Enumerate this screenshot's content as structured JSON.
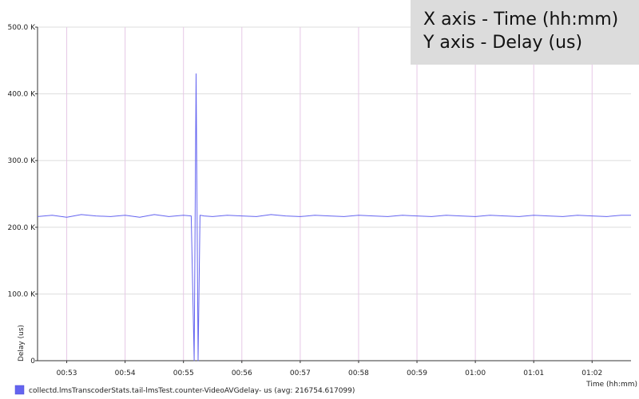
{
  "overlay": {
    "line1": "X axis - Time (hh:mm)",
    "line2": "Y axis - Delay (us)"
  },
  "chart_data": {
    "type": "line",
    "title": "",
    "xlabel": "Time (hh:mm)",
    "ylabel": "Delay (us)",
    "x_ticks": [
      "00:53",
      "00:54",
      "00:55",
      "00:56",
      "00:57",
      "00:58",
      "00:59",
      "01:00",
      "01:01",
      "01:02"
    ],
    "x_range": [
      "00:52:30",
      "01:02:40"
    ],
    "y_ticks": [
      "0",
      "100.0 K",
      "200.0 K",
      "300.0 K",
      "400.0 K",
      "500.0 K"
    ],
    "ylim": [
      0,
      500000
    ],
    "grid": true,
    "legend_position": "bottom-left",
    "colors": {
      "series": "#6464f0",
      "vgrid": "#e6c8e6",
      "hgrid": "#dddddd",
      "axis": "#333333"
    },
    "series": [
      {
        "name": "collectd.lmsTranscoderStats.tail-lmsTest.counter-VideoAVGdelay- us (avg: 216754.617099)",
        "x": [
          "00:52:30",
          "00:52:45",
          "00:53:00",
          "00:53:15",
          "00:53:30",
          "00:53:45",
          "00:54:00",
          "00:54:15",
          "00:54:30",
          "00:54:45",
          "00:55:00",
          "00:55:08",
          "00:55:11",
          "00:55:13",
          "00:55:15",
          "00:55:17",
          "00:55:21",
          "00:55:30",
          "00:55:45",
          "00:56:00",
          "00:56:15",
          "00:56:30",
          "00:56:45",
          "00:57:00",
          "00:57:15",
          "00:57:30",
          "00:57:45",
          "00:58:00",
          "00:58:15",
          "00:58:30",
          "00:58:45",
          "00:59:00",
          "00:59:15",
          "00:59:30",
          "00:59:45",
          "01:00:00",
          "01:00:15",
          "01:00:30",
          "01:00:45",
          "01:01:00",
          "01:01:15",
          "01:01:30",
          "01:01:45",
          "01:02:00",
          "01:02:15",
          "01:02:30",
          "01:02:40"
        ],
        "y": [
          216000,
          218000,
          215000,
          219000,
          217000,
          216000,
          218000,
          215000,
          219000,
          216000,
          218000,
          217000,
          0,
          430000,
          0,
          218000,
          217000,
          216000,
          218000,
          217000,
          216000,
          219000,
          217000,
          216000,
          218000,
          217000,
          216000,
          218000,
          217000,
          216000,
          218000,
          217000,
          216000,
          218000,
          217000,
          216000,
          218000,
          217000,
          216000,
          218000,
          217000,
          216000,
          218000,
          217000,
          216000,
          218000,
          218000
        ]
      }
    ]
  }
}
